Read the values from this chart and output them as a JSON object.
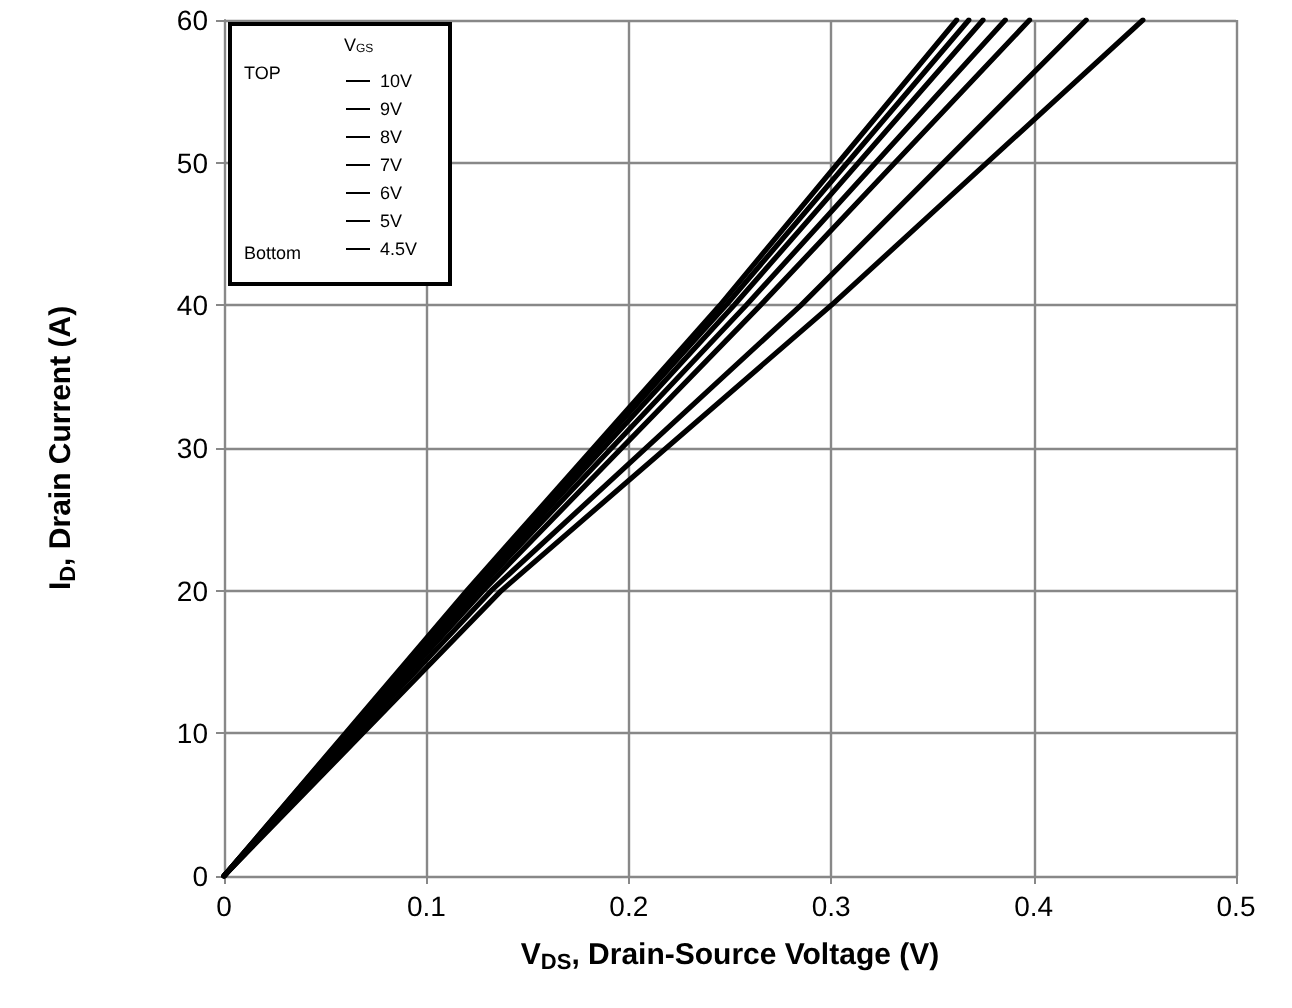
{
  "chart_data": {
    "type": "line",
    "xlabel": "V$_{DS}$, Drain-Source Voltage (V)",
    "ylabel": "I$_{D}$, Drain Current (A)",
    "legend_title": "V$_{GS}$",
    "annotations": [
      "TOP",
      "Bottom"
    ],
    "xlim": [
      0,
      0.5
    ],
    "xticks": [
      0,
      0.1,
      0.2,
      0.3,
      0.4,
      0.5
    ],
    "ylim": [
      0,
      60
    ],
    "yticks": [
      0,
      10,
      20,
      30,
      40,
      50,
      60
    ],
    "grid": true,
    "legend": "top left",
    "marker": "none",
    "line_style": "solid",
    "series": [
      {
        "name": "10V",
        "color": "#000000",
        "x": [
          0,
          0.12,
          0.245,
          0.362
        ],
        "values": [
          0,
          20,
          40,
          60
        ]
      },
      {
        "name": "9V",
        "color": "#000000",
        "x": [
          0,
          0.121,
          0.248,
          0.368
        ],
        "values": [
          0,
          20,
          40,
          60
        ]
      },
      {
        "name": "8V",
        "color": "#000000",
        "x": [
          0,
          0.123,
          0.252,
          0.375
        ],
        "values": [
          0,
          20,
          40,
          60
        ]
      },
      {
        "name": "7V",
        "color": "#000000",
        "x": [
          0,
          0.125,
          0.258,
          0.386
        ],
        "values": [
          0,
          20,
          40,
          60
        ]
      },
      {
        "name": "6V",
        "color": "#000000",
        "x": [
          0,
          0.128,
          0.265,
          0.398
        ],
        "values": [
          0,
          20,
          40,
          60
        ]
      },
      {
        "name": "5V",
        "color": "#000000",
        "x": [
          0,
          0.132,
          0.285,
          0.426
        ],
        "values": [
          0,
          20,
          40,
          60
        ]
      },
      {
        "name": "4.5V",
        "color": "#000000",
        "x": [
          0,
          0.137,
          0.3,
          0.454
        ],
        "values": [
          0,
          20,
          40,
          60
        ]
      }
    ]
  }
}
